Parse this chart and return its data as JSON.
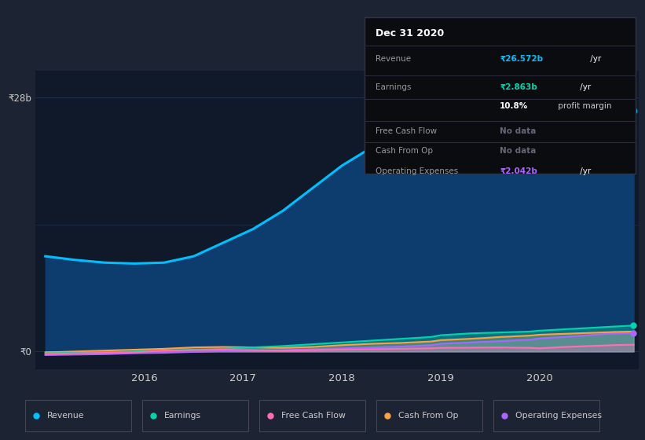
{
  "bg_color": "#1c2333",
  "plot_bg_color": "#0f1929",
  "grid_color": "#253550",
  "years": [
    2015.0,
    2015.3,
    2015.6,
    2015.9,
    2016.2,
    2016.5,
    2016.8,
    2017.1,
    2017.4,
    2017.7,
    2018.0,
    2018.3,
    2018.6,
    2018.9,
    2019.0,
    2019.3,
    2019.6,
    2019.9,
    2020.0,
    2020.25,
    2020.5,
    2020.75,
    2020.95
  ],
  "revenue": [
    10.5,
    10.1,
    9.8,
    9.7,
    9.8,
    10.5,
    12.0,
    13.5,
    15.5,
    18.0,
    20.5,
    22.5,
    24.0,
    25.5,
    27.2,
    27.8,
    27.2,
    26.5,
    25.5,
    24.8,
    25.5,
    26.1,
    26.572
  ],
  "earnings": [
    -0.2,
    -0.15,
    -0.1,
    0.0,
    0.1,
    0.2,
    0.3,
    0.45,
    0.6,
    0.8,
    1.0,
    1.2,
    1.4,
    1.6,
    1.8,
    2.0,
    2.1,
    2.2,
    2.3,
    2.45,
    2.6,
    2.75,
    2.863
  ],
  "free_cash_flow": [
    -0.3,
    -0.2,
    -0.15,
    -0.1,
    0.1,
    0.15,
    0.2,
    0.15,
    0.1,
    0.15,
    0.2,
    0.25,
    0.3,
    0.35,
    0.4,
    0.42,
    0.45,
    0.4,
    0.35,
    0.5,
    0.6,
    0.7,
    0.75
  ],
  "cash_from_op": [
    -0.1,
    0.0,
    0.1,
    0.2,
    0.3,
    0.45,
    0.5,
    0.45,
    0.4,
    0.5,
    0.7,
    0.85,
    0.95,
    1.1,
    1.25,
    1.4,
    1.6,
    1.75,
    1.85,
    1.95,
    2.05,
    2.15,
    2.2
  ],
  "operating_expenses": [
    -0.4,
    -0.35,
    -0.3,
    -0.2,
    -0.15,
    -0.05,
    0.05,
    0.1,
    0.15,
    0.25,
    0.35,
    0.45,
    0.55,
    0.7,
    0.85,
    1.0,
    1.15,
    1.3,
    1.45,
    1.6,
    1.8,
    2.0,
    2.042
  ],
  "revenue_color": "#00bfff",
  "earnings_color": "#00d4aa",
  "free_cash_flow_color": "#ff6eb4",
  "cash_from_op_color": "#ffa040",
  "operating_expenses_color": "#aa66ff",
  "revenue_fill_color": "#0d3d6e",
  "ylim": [
    -2,
    31
  ],
  "xtick_years": [
    2016,
    2017,
    2018,
    2019,
    2020
  ],
  "info_box": {
    "title": "Dec 31 2020",
    "revenue_val": "₹26.572b",
    "earnings_val": "₹2.863b",
    "profit_margin": "10.8%",
    "free_cash_flow_val": "No data",
    "cash_from_op_val": "No data",
    "op_expenses_val": "₹2.042b"
  },
  "legend": [
    "Revenue",
    "Earnings",
    "Free Cash Flow",
    "Cash From Op",
    "Operating Expenses"
  ],
  "legend_colors": [
    "#00bfff",
    "#00d4aa",
    "#ff6eb4",
    "#ffa040",
    "#aa66ff"
  ]
}
